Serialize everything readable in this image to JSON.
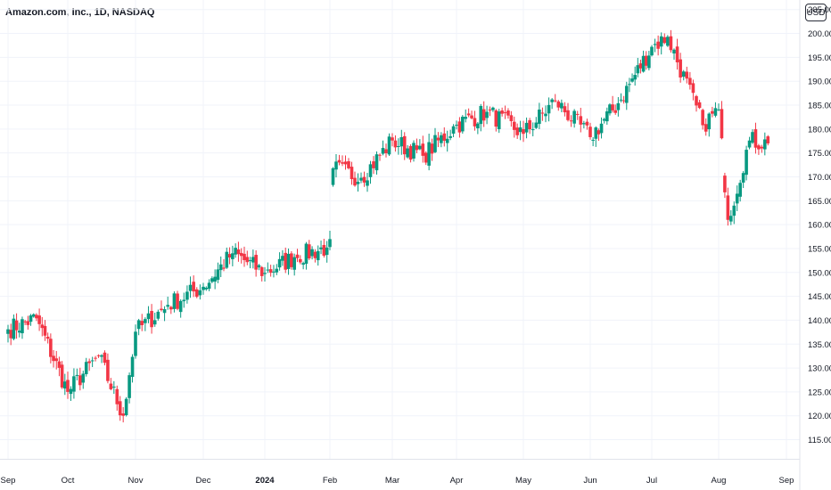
{
  "header": {
    "title": "Amazon.com, Inc., 1D, NASDAQ",
    "currency_button": "USD"
  },
  "chart_data": {
    "type": "candlestick",
    "title": "Amazon.com, Inc., 1D, NASDAQ",
    "ylim": [
      111,
      207
    ],
    "yticks": [
      115,
      120,
      125,
      130,
      135,
      140,
      145,
      150,
      155,
      160,
      165,
      170,
      175,
      180,
      185,
      190,
      195,
      200,
      205
    ],
    "xticks": [
      {
        "date": "2023-09-01",
        "label": "Sep"
      },
      {
        "date": "2023-10-02",
        "label": "Oct"
      },
      {
        "date": "2023-11-01",
        "label": "Nov"
      },
      {
        "date": "2023-12-01",
        "label": "Dec"
      },
      {
        "date": "2024-01-02",
        "label": "2024",
        "bold": true
      },
      {
        "date": "2024-02-01",
        "label": "Feb"
      },
      {
        "date": "2024-03-01",
        "label": "Mar"
      },
      {
        "date": "2024-04-01",
        "label": "Apr"
      },
      {
        "date": "2024-05-01",
        "label": "May"
      },
      {
        "date": "2024-06-03",
        "label": "Jun"
      },
      {
        "date": "2024-07-01",
        "label": "Jul"
      },
      {
        "date": "2024-08-01",
        "label": "Aug"
      },
      {
        "date": "2024-09-03",
        "label": "Sep"
      }
    ],
    "grid": true,
    "colors": {
      "up": "#089981",
      "down": "#f23645",
      "grid": "#f0f3fa"
    },
    "close_series": [
      {
        "date": "2023-09-01",
        "close": 138.1
      },
      {
        "date": "2023-09-15",
        "close": 140.4
      },
      {
        "date": "2023-10-02",
        "close": 125.0
      },
      {
        "date": "2023-10-16",
        "close": 132.5
      },
      {
        "date": "2023-10-27",
        "close": 120.0
      },
      {
        "date": "2023-11-01",
        "close": 137.6
      },
      {
        "date": "2023-11-15",
        "close": 143.2
      },
      {
        "date": "2023-12-01",
        "close": 147.0
      },
      {
        "date": "2023-12-15",
        "close": 154.0
      },
      {
        "date": "2024-01-02",
        "close": 149.9
      },
      {
        "date": "2024-01-16",
        "close": 153.2
      },
      {
        "date": "2024-01-31",
        "close": 155.2
      },
      {
        "date": "2024-02-02",
        "close": 171.8
      },
      {
        "date": "2024-02-15",
        "close": 169.8
      },
      {
        "date": "2024-03-01",
        "close": 177.6
      },
      {
        "date": "2024-03-15",
        "close": 174.4
      },
      {
        "date": "2024-04-01",
        "close": 180.9
      },
      {
        "date": "2024-04-15",
        "close": 183.6
      },
      {
        "date": "2024-05-01",
        "close": 179.0
      },
      {
        "date": "2024-05-15",
        "close": 185.9
      },
      {
        "date": "2024-06-03",
        "close": 178.3
      },
      {
        "date": "2024-06-17",
        "close": 185.4
      },
      {
        "date": "2024-07-01",
        "close": 197.2
      },
      {
        "date": "2024-07-08",
        "close": 199.3
      },
      {
        "date": "2024-07-24",
        "close": 180.8
      },
      {
        "date": "2024-08-01",
        "close": 184.1
      },
      {
        "date": "2024-08-05",
        "close": 161.0
      },
      {
        "date": "2024-08-15",
        "close": 177.6
      },
      {
        "date": "2024-08-23",
        "close": 177.0
      }
    ]
  }
}
